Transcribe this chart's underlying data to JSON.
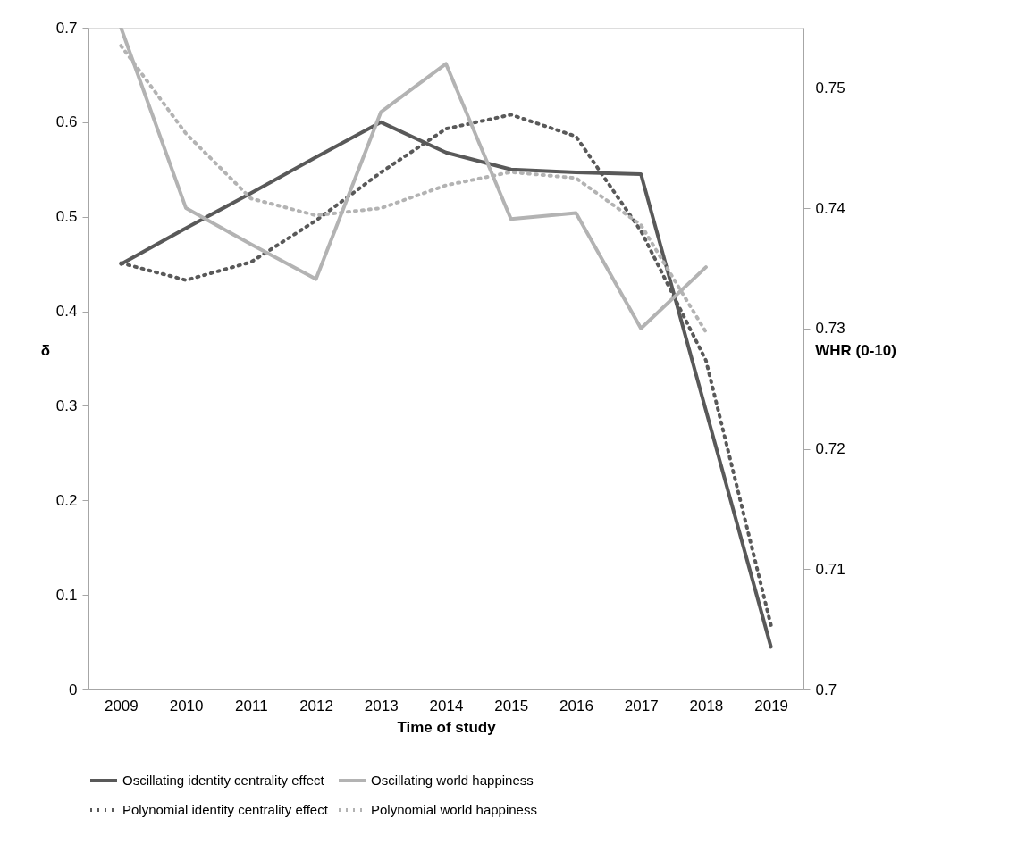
{
  "chart_data": {
    "type": "line",
    "xlabel": "Time of study",
    "ylabel": "δ",
    "y2label": "WHR (0-10)",
    "categories": [
      "2009",
      "2010",
      "2011",
      "2012",
      "2013",
      "2014",
      "2015",
      "2016",
      "2017",
      "2018",
      "2019"
    ],
    "ylim": [
      0,
      0.7
    ],
    "yticks": [
      {
        "value": 0,
        "label": "0"
      },
      0.1,
      0.2,
      0.3,
      0.4,
      0.5,
      0.6,
      0.7
    ],
    "y2lim": [
      0.7,
      0.755
    ],
    "y2ticks": [
      {
        "value": 0.7,
        "label": "0.7"
      },
      0.71,
      0.72,
      0.73,
      0.74,
      0.75
    ],
    "grid": false,
    "legend": "bottom",
    "marker": "none",
    "series": [
      {
        "name": "Oscillating identity centrality effect",
        "color": "#595959",
        "line_style": "solid",
        "axis": "y",
        "values": [
          0.45,
          0.488,
          0.525,
          0.563,
          0.6,
          0.568,
          0.55,
          0.547,
          0.545,
          0.295,
          0.045
        ]
      },
      {
        "name": "Oscillating world happiness",
        "color": "#b3b3b3",
        "line_style": "solid",
        "axis": "y2",
        "values": [
          0.755,
          0.74,
          0.737,
          0.7341,
          0.748,
          0.752,
          0.7391,
          0.7396,
          0.73,
          0.7351,
          null
        ]
      },
      {
        "name": "Polynomial identity centrality effect",
        "color": "#595959",
        "line_style": "dotted",
        "axis": "y",
        "values": [
          0.451,
          0.433,
          0.452,
          0.496,
          0.547,
          0.593,
          0.608,
          0.585,
          0.485,
          0.348,
          0.068
        ]
      },
      {
        "name": "Polynomial world happiness",
        "color": "#b3b3b3",
        "line_style": "dotted",
        "axis": "y2",
        "values": [
          0.7535,
          0.7462,
          0.7408,
          0.7394,
          0.74,
          0.7419,
          0.743,
          0.7425,
          0.7386,
          0.7297,
          null
        ]
      }
    ]
  }
}
